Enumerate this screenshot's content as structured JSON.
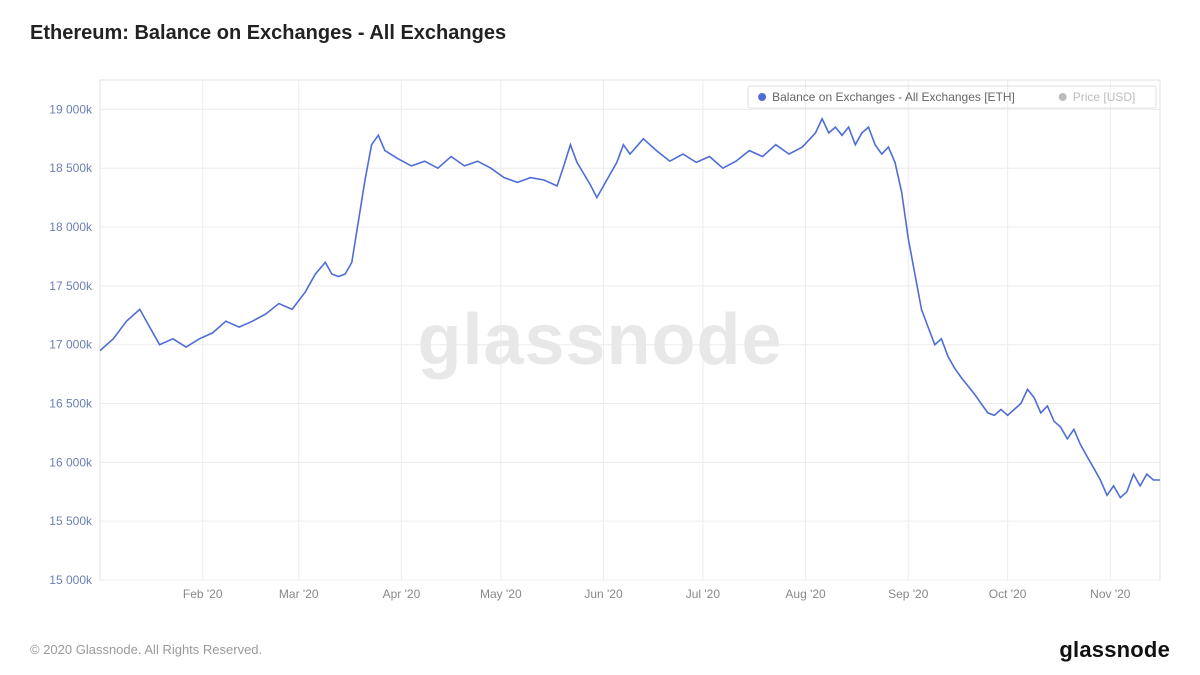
{
  "title": "Ethereum: Balance on Exchanges - All Exchanges",
  "copyright": "© 2020 Glassnode. All Rights Reserved.",
  "brand": "glassnode",
  "watermark": "glassnode",
  "chart": {
    "type": "line",
    "background_color": "#ffffff",
    "plot_border_color": "#e0e0e0",
    "grid_color": "#ececec",
    "series_color": "#4f6dd6",
    "line_width": 1.6,
    "y": {
      "min": 15000,
      "max": 19250,
      "ticks": [
        15000,
        15500,
        16000,
        16500,
        17000,
        17500,
        18000,
        18500,
        19000
      ],
      "tick_labels": [
        "15 000k",
        "15 500k",
        "16 000k",
        "16 500k",
        "17 000k",
        "17 500k",
        "18 000k",
        "18 500k",
        "19 000k"
      ],
      "tick_color": "#6b7fb3",
      "tick_fontsize": 12
    },
    "x": {
      "min": 0,
      "max": 320,
      "tick_positions": [
        31,
        60,
        91,
        121,
        152,
        182,
        213,
        244,
        274,
        305
      ],
      "tick_labels": [
        "Feb '20",
        "Mar '20",
        "Apr '20",
        "May '20",
        "Jun '20",
        "Jul '20",
        "Aug '20",
        "Sep '20",
        "Oct '20",
        "Nov '20"
      ],
      "tick_color": "#888888",
      "tick_fontsize": 12
    },
    "legend": {
      "items": [
        {
          "marker": "circle",
          "color": "#4f6dd6",
          "label": "Balance on Exchanges - All Exchanges [ETH]",
          "muted": false
        },
        {
          "marker": "circle",
          "color": "#bcbcbc",
          "label": "Price [USD]",
          "muted": true
        }
      ],
      "position": "top-right"
    },
    "series": [
      {
        "x": 0,
        "y": 16950
      },
      {
        "x": 4,
        "y": 17050
      },
      {
        "x": 8,
        "y": 17200
      },
      {
        "x": 12,
        "y": 17300
      },
      {
        "x": 15,
        "y": 17150
      },
      {
        "x": 18,
        "y": 17000
      },
      {
        "x": 22,
        "y": 17050
      },
      {
        "x": 26,
        "y": 16980
      },
      {
        "x": 30,
        "y": 17050
      },
      {
        "x": 34,
        "y": 17100
      },
      {
        "x": 38,
        "y": 17200
      },
      {
        "x": 42,
        "y": 17150
      },
      {
        "x": 46,
        "y": 17200
      },
      {
        "x": 50,
        "y": 17260
      },
      {
        "x": 54,
        "y": 17350
      },
      {
        "x": 58,
        "y": 17300
      },
      {
        "x": 62,
        "y": 17450
      },
      {
        "x": 65,
        "y": 17600
      },
      {
        "x": 68,
        "y": 17700
      },
      {
        "x": 70,
        "y": 17600
      },
      {
        "x": 72,
        "y": 17580
      },
      {
        "x": 74,
        "y": 17600
      },
      {
        "x": 76,
        "y": 17700
      },
      {
        "x": 78,
        "y": 18050
      },
      {
        "x": 80,
        "y": 18400
      },
      {
        "x": 82,
        "y": 18700
      },
      {
        "x": 84,
        "y": 18780
      },
      {
        "x": 86,
        "y": 18650
      },
      {
        "x": 90,
        "y": 18580
      },
      {
        "x": 94,
        "y": 18520
      },
      {
        "x": 98,
        "y": 18560
      },
      {
        "x": 102,
        "y": 18500
      },
      {
        "x": 106,
        "y": 18600
      },
      {
        "x": 110,
        "y": 18520
      },
      {
        "x": 114,
        "y": 18560
      },
      {
        "x": 118,
        "y": 18500
      },
      {
        "x": 122,
        "y": 18420
      },
      {
        "x": 126,
        "y": 18380
      },
      {
        "x": 130,
        "y": 18420
      },
      {
        "x": 134,
        "y": 18400
      },
      {
        "x": 138,
        "y": 18350
      },
      {
        "x": 140,
        "y": 18520
      },
      {
        "x": 142,
        "y": 18700
      },
      {
        "x": 144,
        "y": 18550
      },
      {
        "x": 148,
        "y": 18360
      },
      {
        "x": 150,
        "y": 18250
      },
      {
        "x": 152,
        "y": 18350
      },
      {
        "x": 156,
        "y": 18550
      },
      {
        "x": 158,
        "y": 18700
      },
      {
        "x": 160,
        "y": 18620
      },
      {
        "x": 164,
        "y": 18750
      },
      {
        "x": 168,
        "y": 18650
      },
      {
        "x": 172,
        "y": 18560
      },
      {
        "x": 176,
        "y": 18620
      },
      {
        "x": 180,
        "y": 18550
      },
      {
        "x": 184,
        "y": 18600
      },
      {
        "x": 188,
        "y": 18500
      },
      {
        "x": 192,
        "y": 18560
      },
      {
        "x": 196,
        "y": 18650
      },
      {
        "x": 200,
        "y": 18600
      },
      {
        "x": 204,
        "y": 18700
      },
      {
        "x": 208,
        "y": 18620
      },
      {
        "x": 212,
        "y": 18680
      },
      {
        "x": 216,
        "y": 18800
      },
      {
        "x": 218,
        "y": 18920
      },
      {
        "x": 220,
        "y": 18800
      },
      {
        "x": 222,
        "y": 18850
      },
      {
        "x": 224,
        "y": 18780
      },
      {
        "x": 226,
        "y": 18850
      },
      {
        "x": 228,
        "y": 18700
      },
      {
        "x": 230,
        "y": 18800
      },
      {
        "x": 232,
        "y": 18850
      },
      {
        "x": 234,
        "y": 18700
      },
      {
        "x": 236,
        "y": 18620
      },
      {
        "x": 238,
        "y": 18680
      },
      {
        "x": 240,
        "y": 18550
      },
      {
        "x": 242,
        "y": 18300
      },
      {
        "x": 244,
        "y": 17900
      },
      {
        "x": 246,
        "y": 17600
      },
      {
        "x": 248,
        "y": 17300
      },
      {
        "x": 250,
        "y": 17150
      },
      {
        "x": 252,
        "y": 17000
      },
      {
        "x": 254,
        "y": 17050
      },
      {
        "x": 256,
        "y": 16900
      },
      {
        "x": 258,
        "y": 16800
      },
      {
        "x": 260,
        "y": 16720
      },
      {
        "x": 262,
        "y": 16650
      },
      {
        "x": 264,
        "y": 16580
      },
      {
        "x": 266,
        "y": 16500
      },
      {
        "x": 268,
        "y": 16420
      },
      {
        "x": 270,
        "y": 16400
      },
      {
        "x": 272,
        "y": 16450
      },
      {
        "x": 274,
        "y": 16400
      },
      {
        "x": 276,
        "y": 16450
      },
      {
        "x": 278,
        "y": 16500
      },
      {
        "x": 280,
        "y": 16620
      },
      {
        "x": 282,
        "y": 16550
      },
      {
        "x": 284,
        "y": 16420
      },
      {
        "x": 286,
        "y": 16480
      },
      {
        "x": 288,
        "y": 16350
      },
      {
        "x": 290,
        "y": 16300
      },
      {
        "x": 292,
        "y": 16200
      },
      {
        "x": 294,
        "y": 16280
      },
      {
        "x": 296,
        "y": 16150
      },
      {
        "x": 298,
        "y": 16050
      },
      {
        "x": 300,
        "y": 15950
      },
      {
        "x": 302,
        "y": 15850
      },
      {
        "x": 304,
        "y": 15720
      },
      {
        "x": 306,
        "y": 15800
      },
      {
        "x": 308,
        "y": 15700
      },
      {
        "x": 310,
        "y": 15750
      },
      {
        "x": 312,
        "y": 15900
      },
      {
        "x": 314,
        "y": 15800
      },
      {
        "x": 316,
        "y": 15900
      },
      {
        "x": 318,
        "y": 15850
      },
      {
        "x": 320,
        "y": 15850
      }
    ]
  }
}
